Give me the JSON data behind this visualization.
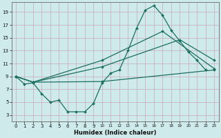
{
  "xlabel": "Humidex (Indice chaleur)",
  "bg_color": "#ceeaea",
  "grid_color": "#c8a8b8",
  "line_color": "#1a6e60",
  "markersize": 2.0,
  "linewidth": 0.9,
  "xlim": [
    -0.5,
    23.5
  ],
  "ylim": [
    2.0,
    20.5
  ],
  "yticks": [
    3,
    5,
    7,
    9,
    11,
    13,
    15,
    17,
    19
  ],
  "xticks": [
    0,
    1,
    2,
    3,
    4,
    5,
    6,
    7,
    8,
    9,
    10,
    11,
    12,
    13,
    14,
    15,
    16,
    17,
    18,
    19,
    20,
    21,
    22,
    23
  ],
  "line1_x": [
    0,
    1,
    2,
    3,
    4,
    5,
    6,
    7,
    8,
    9,
    10,
    11,
    12,
    13,
    14,
    15,
    16,
    17,
    18,
    19,
    20,
    21,
    22
  ],
  "line1_y": [
    9.0,
    7.8,
    8.0,
    6.3,
    5.0,
    5.3,
    3.5,
    3.5,
    3.5,
    4.8,
    8.0,
    9.5,
    10.0,
    13.0,
    16.5,
    19.3,
    20.0,
    18.5,
    16.2,
    14.5,
    12.8,
    11.5,
    10.0
  ],
  "line2_x": [
    0,
    2,
    10,
    23
  ],
  "line2_y": [
    9.0,
    8.1,
    8.2,
    10.0
  ],
  "line3_x": [
    0,
    2,
    10,
    19,
    23
  ],
  "line3_y": [
    9.0,
    8.1,
    10.5,
    14.7,
    11.5
  ],
  "line4_x": [
    0,
    2,
    10,
    17,
    23
  ],
  "line4_y": [
    9.0,
    8.1,
    11.5,
    16.0,
    10.2
  ]
}
